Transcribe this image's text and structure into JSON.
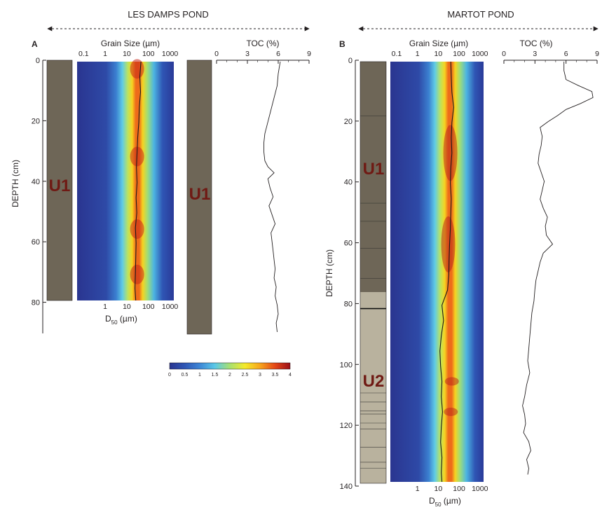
{
  "panel_a": {
    "label": "A",
    "title": "LES DAMPS POND",
    "depth_label": "DEPTH (cm)",
    "depth_ticks": [
      "0",
      "20",
      "40",
      "60",
      "80"
    ],
    "gs_title": "Grain Size (µm)",
    "gs_top_ticks": [
      "0.1",
      "1",
      "10",
      "100",
      "1000"
    ],
    "gs_bottom_ticks": [
      "1",
      "10",
      "100",
      "1000"
    ],
    "d50_label_main": "D",
    "d50_label_sub": "50",
    "d50_label_unit": " (µm)",
    "toc_title": "TOC (%)",
    "toc_ticks": [
      "0",
      "3",
      "6",
      "9"
    ],
    "unit_labels": [
      "U1",
      "U1"
    ]
  },
  "panel_b": {
    "label": "B",
    "title": "MARTOT POND",
    "depth_label": "DEPTH (cm)",
    "depth_ticks": [
      "0",
      "20",
      "40",
      "60",
      "80",
      "100",
      "120",
      "140"
    ],
    "gs_title": "Grain Size (µm)",
    "gs_top_ticks": [
      "0.1",
      "1",
      "10",
      "100",
      "1000"
    ],
    "gs_bottom_ticks": [
      "1",
      "10",
      "100",
      "1000"
    ],
    "d50_label_main": "D",
    "d50_label_sub": "50",
    "d50_label_unit": " (µm)",
    "toc_title": "TOC (%)",
    "toc_ticks": [
      "0",
      "3",
      "6",
      "9"
    ],
    "unit_labels": [
      "U1",
      "U2"
    ]
  },
  "colorbar": {
    "ticks": [
      "0",
      "0.5",
      "1",
      "1.5",
      "2",
      "2.5",
      "3",
      "3.5",
      "4"
    ],
    "stops": [
      "#2a3590",
      "#2f56b5",
      "#3d86d6",
      "#5ac8e8",
      "#a8e070",
      "#f4ea2a",
      "#f7a51c",
      "#e44717",
      "#9b1018"
    ]
  },
  "colors": {
    "lithology_u1": "#6e6657",
    "lithology_u2": "#b9b29e",
    "unit_label": "#6f1a14",
    "heatmap_background": "#2f4ea9"
  },
  "chart_data": [
    {
      "type": "heatmap",
      "panel": "A",
      "title": "Grain Size (µm)",
      "xlabel": "D50 (µm)",
      "ylabel": "DEPTH (cm)",
      "x_scale": "log",
      "xlim": [
        0.05,
        1500
      ],
      "ylim": [
        0,
        79
      ],
      "colorbar_range": [
        0,
        4
      ],
      "mode_um": 30,
      "d50_profile": {
        "depth": [
          0,
          5,
          10,
          15,
          20,
          25,
          30,
          35,
          40,
          45,
          50,
          55,
          60,
          65,
          70,
          75,
          79
        ],
        "d50": [
          45,
          40,
          43,
          38,
          36,
          32,
          30,
          28,
          30,
          27,
          29,
          25,
          27,
          26,
          25,
          24,
          26
        ]
      },
      "hotspots_depth_cm": [
        1,
        30,
        54,
        69
      ]
    },
    {
      "type": "line",
      "panel": "A",
      "title": "TOC (%)",
      "ylabel": "DEPTH (cm)",
      "xlim": [
        0,
        9
      ],
      "ylim": [
        0,
        90
      ],
      "depth": [
        0,
        4,
        8,
        12,
        16,
        20,
        24,
        27,
        30,
        33,
        35,
        37,
        39,
        42,
        45,
        48,
        51,
        54,
        57,
        60,
        63,
        66,
        69,
        72,
        75,
        78,
        81,
        84,
        87,
        90
      ],
      "toc": [
        6.2,
        6.0,
        5.9,
        5.6,
        5.3,
        5.0,
        4.7,
        4.6,
        4.6,
        4.7,
        5.0,
        5.6,
        5.0,
        5.2,
        5.5,
        5.1,
        5.4,
        5.7,
        5.3,
        5.4,
        5.5,
        5.6,
        5.7,
        5.6,
        5.8,
        5.7,
        5.9,
        6.0,
        5.8,
        5.9
      ]
    },
    {
      "type": "heatmap",
      "panel": "B",
      "title": "Grain Size (µm)",
      "xlabel": "D50 (µm)",
      "ylabel": "DEPTH (cm)",
      "x_scale": "log",
      "xlim": [
        0.05,
        1500
      ],
      "ylim": [
        0,
        138
      ],
      "colorbar_range": [
        0,
        4
      ],
      "d50_profile": {
        "depth": [
          0,
          5,
          10,
          15,
          20,
          25,
          30,
          35,
          40,
          45,
          50,
          55,
          60,
          65,
          70,
          75,
          80,
          85,
          90,
          95,
          100,
          105,
          110,
          115,
          120,
          125,
          130,
          135,
          138
        ],
        "d50": [
          40,
          42,
          45,
          55,
          45,
          42,
          45,
          40,
          38,
          42,
          40,
          38,
          35,
          33,
          32,
          28,
          15,
          18,
          14,
          12,
          13,
          15,
          14,
          16,
          14,
          13,
          15,
          14,
          15
        ]
      }
    },
    {
      "type": "line",
      "panel": "B",
      "title": "TOC (%)",
      "ylabel": "DEPTH (cm)",
      "xlim": [
        0,
        9
      ],
      "ylim": [
        0,
        140
      ],
      "depth": [
        0,
        3,
        6,
        8,
        10,
        12,
        14,
        16,
        18,
        20,
        22,
        25,
        28,
        31,
        34,
        37,
        40,
        43,
        46,
        49,
        52,
        55,
        58,
        61,
        64,
        67,
        70,
        73,
        76,
        80,
        84,
        88,
        92,
        96,
        100,
        104,
        108,
        112,
        115,
        118,
        121,
        124,
        127,
        130,
        133,
        136,
        138
      ],
      "toc": [
        5.8,
        5.8,
        6.0,
        7.2,
        8.5,
        8.6,
        7.4,
        6.0,
        5.2,
        4.3,
        3.5,
        3.7,
        3.6,
        3.4,
        3.3,
        3.6,
        3.9,
        3.7,
        3.5,
        3.8,
        4.2,
        4.0,
        4.1,
        4.7,
        3.8,
        3.5,
        3.3,
        3.1,
        3.0,
        2.9,
        2.7,
        2.6,
        2.5,
        2.4,
        2.3,
        2.5,
        2.2,
        2.0,
        1.8,
        2.0,
        2.1,
        1.9,
        2.4,
        2.6,
        2.2,
        2.4,
        2.3
      ]
    }
  ]
}
